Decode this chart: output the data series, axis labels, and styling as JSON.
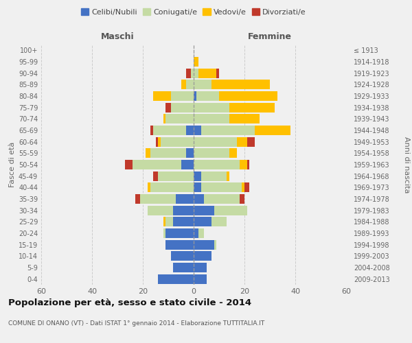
{
  "age_groups": [
    "0-4",
    "5-9",
    "10-14",
    "15-19",
    "20-24",
    "25-29",
    "30-34",
    "35-39",
    "40-44",
    "45-49",
    "50-54",
    "55-59",
    "60-64",
    "65-69",
    "70-74",
    "75-79",
    "80-84",
    "85-89",
    "90-94",
    "95-99",
    "100+"
  ],
  "birth_years": [
    "2009-2013",
    "2004-2008",
    "1999-2003",
    "1994-1998",
    "1989-1993",
    "1984-1988",
    "1979-1983",
    "1974-1978",
    "1969-1973",
    "1964-1968",
    "1959-1963",
    "1954-1958",
    "1949-1953",
    "1944-1948",
    "1939-1943",
    "1934-1938",
    "1929-1933",
    "1924-1928",
    "1919-1923",
    "1914-1918",
    "≤ 1913"
  ],
  "male": {
    "celibi": [
      14,
      8,
      9,
      11,
      11,
      8,
      8,
      7,
      0,
      0,
      5,
      3,
      0,
      3,
      0,
      0,
      0,
      0,
      0,
      0,
      0
    ],
    "coniugati": [
      0,
      0,
      0,
      0,
      1,
      3,
      10,
      14,
      17,
      14,
      19,
      14,
      13,
      13,
      11,
      9,
      9,
      3,
      1,
      0,
      0
    ],
    "vedovi": [
      0,
      0,
      0,
      0,
      0,
      1,
      0,
      0,
      1,
      0,
      0,
      2,
      1,
      0,
      1,
      0,
      7,
      2,
      0,
      0,
      0
    ],
    "divorziati": [
      0,
      0,
      0,
      0,
      0,
      0,
      0,
      2,
      0,
      2,
      3,
      0,
      1,
      1,
      0,
      2,
      0,
      0,
      2,
      0,
      0
    ]
  },
  "female": {
    "nubili": [
      5,
      5,
      7,
      8,
      2,
      7,
      8,
      4,
      3,
      3,
      0,
      0,
      0,
      3,
      0,
      0,
      1,
      0,
      0,
      0,
      0
    ],
    "coniugate": [
      0,
      0,
      0,
      1,
      2,
      6,
      13,
      14,
      16,
      10,
      18,
      14,
      17,
      21,
      14,
      14,
      9,
      7,
      2,
      0,
      0
    ],
    "vedove": [
      0,
      0,
      0,
      0,
      0,
      0,
      0,
      0,
      1,
      1,
      3,
      3,
      4,
      14,
      12,
      18,
      23,
      23,
      7,
      2,
      0
    ],
    "divorziate": [
      0,
      0,
      0,
      0,
      0,
      0,
      0,
      2,
      2,
      0,
      1,
      0,
      3,
      0,
      0,
      0,
      0,
      0,
      1,
      0,
      0
    ]
  },
  "colors": {
    "celibi": "#4472c4",
    "coniugati": "#c5dba4",
    "vedovi": "#ffc000",
    "divorziati": "#c0392b"
  },
  "title": "Popolazione per età, sesso e stato civile - 2014",
  "subtitle": "COMUNE DI ONANO (VT) - Dati ISTAT 1° gennaio 2014 - Elaborazione TUTTITALIA.IT",
  "xlabel_left": "Maschi",
  "xlabel_right": "Femmine",
  "ylabel_left": "Fasce di età",
  "ylabel_right": "Anni di nascita",
  "xlim": 60,
  "legend_labels": [
    "Celibi/Nubili",
    "Coniugati/e",
    "Vedovi/e",
    "Divorziati/e"
  ],
  "background_color": "#f0f0f0"
}
